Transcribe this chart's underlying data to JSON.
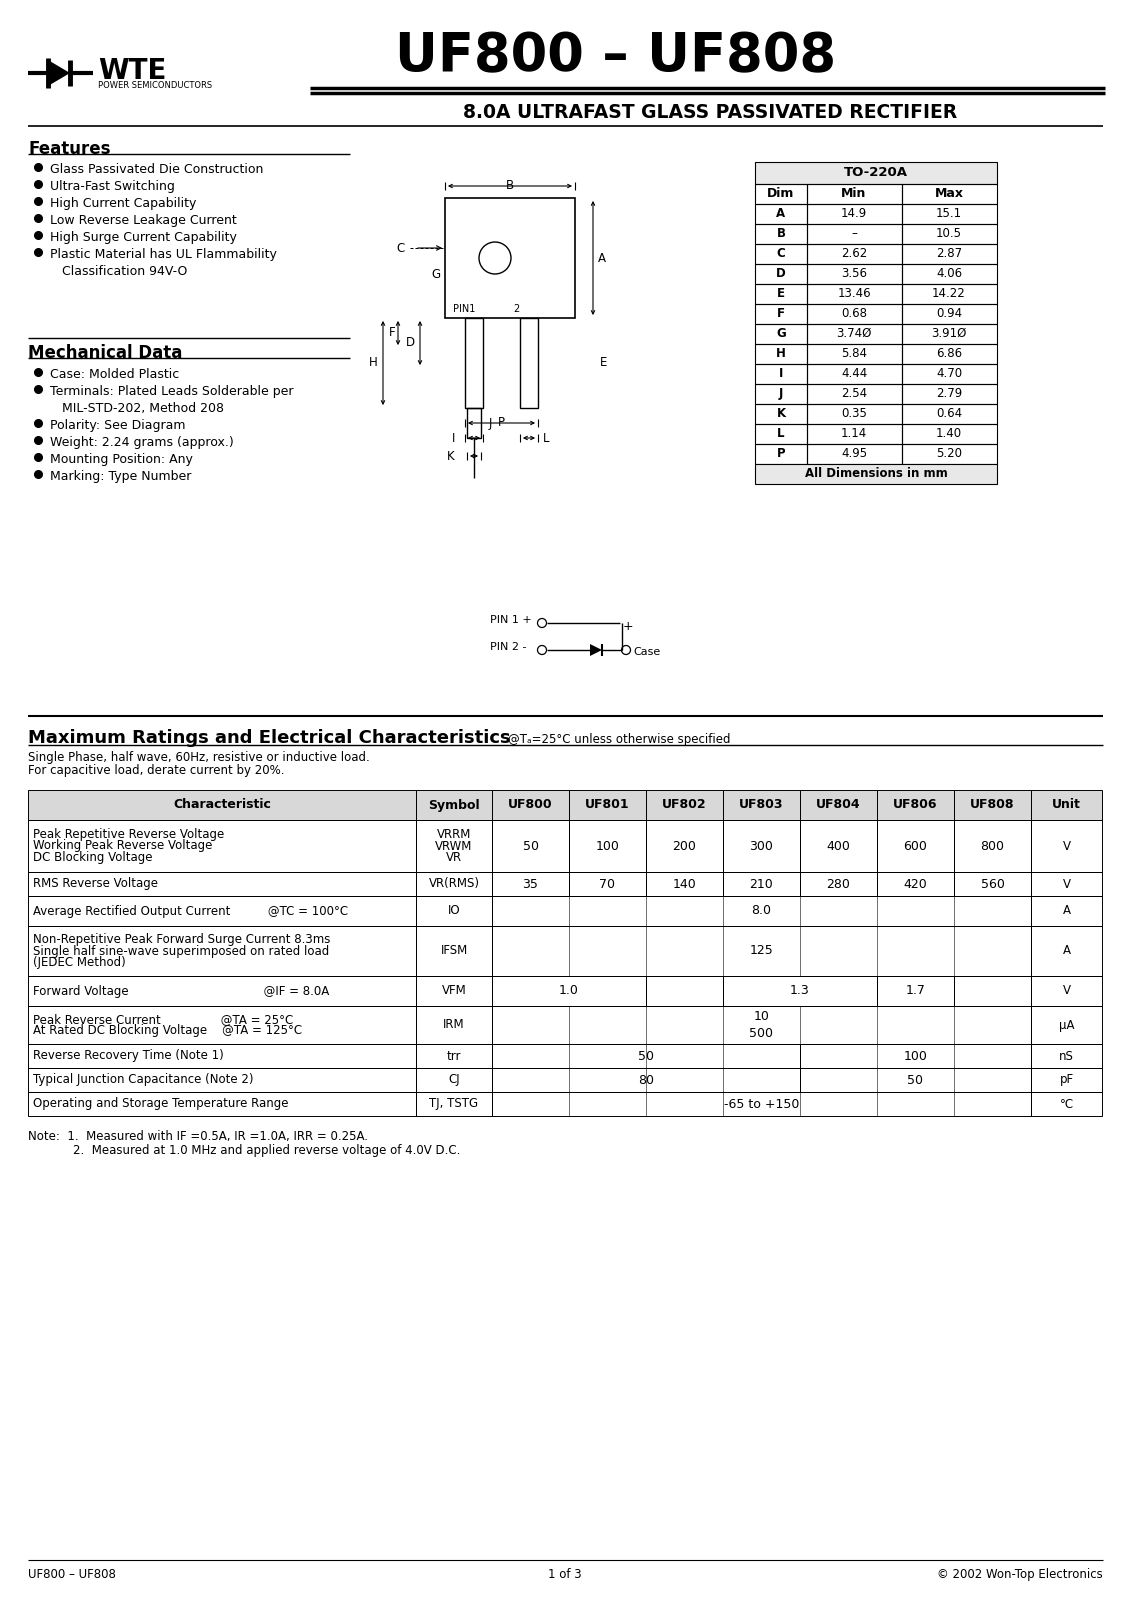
{
  "title": "UF800 – UF808",
  "subtitle": "8.0A ULTRAFAST GLASS PASSIVATED RECTIFIER",
  "company": "WTE",
  "company_sub": "POWER SEMICONDUCTORS",
  "features_title": "Features",
  "features": [
    "Glass Passivated Die Construction",
    "Ultra-Fast Switching",
    "High Current Capability",
    "Low Reverse Leakage Current",
    "High Surge Current Capability",
    "Plastic Material has UL Flammability",
    "   Classification 94V-O"
  ],
  "mech_title": "Mechanical Data",
  "mech": [
    "Case: Molded Plastic",
    "Terminals: Plated Leads Solderable per",
    "   MIL-STD-202, Method 208",
    "Polarity: See Diagram",
    "Weight: 2.24 grams (approx.)",
    "Mounting Position: Any",
    "Marking: Type Number"
  ],
  "dim_table_title": "TO-220A",
  "dim_headers": [
    "Dim",
    "Min",
    "Max"
  ],
  "dim_rows": [
    [
      "A",
      "14.9",
      "15.1"
    ],
    [
      "B",
      "–",
      "10.5"
    ],
    [
      "C",
      "2.62",
      "2.87"
    ],
    [
      "D",
      "3.56",
      "4.06"
    ],
    [
      "E",
      "13.46",
      "14.22"
    ],
    [
      "F",
      "0.68",
      "0.94"
    ],
    [
      "G",
      "3.74Ø",
      "3.91Ø"
    ],
    [
      "H",
      "5.84",
      "6.86"
    ],
    [
      "I",
      "4.44",
      "4.70"
    ],
    [
      "J",
      "2.54",
      "2.79"
    ],
    [
      "K",
      "0.35",
      "0.64"
    ],
    [
      "L",
      "1.14",
      "1.40"
    ],
    [
      "P",
      "4.95",
      "5.20"
    ]
  ],
  "dim_footer": "All Dimensions in mm",
  "ratings_title": "Maximum Ratings and Electrical Characteristics",
  "ratings_title_small": "@Tₐ=25°C unless otherwise specified",
  "ratings_note1": "Single Phase, half wave, 60Hz, resistive or inductive load.",
  "ratings_note2": "For capacitive load, derate current by 20%.",
  "table_headers": [
    "Characteristic",
    "Symbol",
    "UF800",
    "UF801",
    "UF802",
    "UF803",
    "UF804",
    "UF806",
    "UF808",
    "Unit"
  ],
  "footer_left": "UF800 – UF808",
  "footer_center": "1 of 3",
  "footer_right": "© 2002 Won-Top Electronics"
}
